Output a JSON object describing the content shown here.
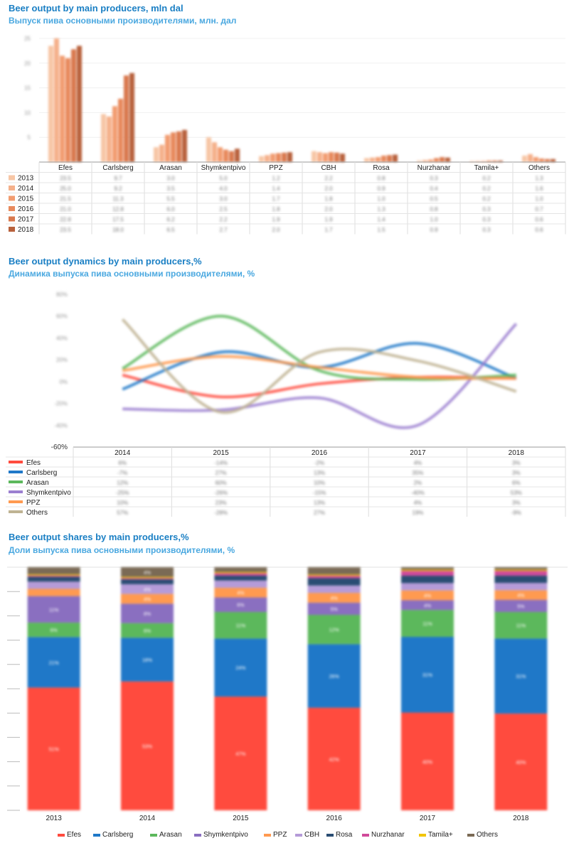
{
  "chart_data": [
    {
      "type": "bar",
      "title": "Beer output by main producers, mln dal",
      "subtitle": "Выпуск пива основными производителями, млн. дал",
      "categories": [
        "Efes",
        "Carlsberg",
        "Arasan",
        "Shymkentpivo",
        "PPZ",
        "CBH",
        "Rosa",
        "Nurzhanar",
        "Tamila+",
        "Others"
      ],
      "y_ticks": [
        "25",
        "20",
        "15",
        "10",
        "5",
        ""
      ],
      "ylim": [
        0,
        25
      ],
      "series": [
        {
          "name": "2013",
          "color": "#f7c6a5",
          "values": [
            23.5,
            9.7,
            3.0,
            5.0,
            1.2,
            2.2,
            0.8,
            0.3,
            0.2,
            1.3
          ]
        },
        {
          "name": "2014",
          "color": "#f5b08a",
          "values": [
            25.0,
            9.2,
            3.5,
            4.0,
            1.4,
            2.0,
            0.9,
            0.4,
            0.2,
            1.6
          ]
        },
        {
          "name": "2015",
          "color": "#f29c70",
          "values": [
            21.5,
            11.3,
            5.5,
            3.0,
            1.7,
            1.8,
            1.0,
            0.5,
            0.2,
            1.0
          ]
        },
        {
          "name": "2016",
          "color": "#e8895c",
          "values": [
            21.0,
            12.8,
            6.0,
            2.5,
            1.8,
            2.0,
            1.3,
            0.8,
            0.3,
            0.7
          ]
        },
        {
          "name": "2017",
          "color": "#d9784d",
          "values": [
            22.8,
            17.5,
            6.2,
            2.2,
            1.9,
            1.9,
            1.4,
            1.0,
            0.3,
            0.6
          ]
        },
        {
          "name": "2018",
          "color": "#b8613c",
          "values": [
            23.5,
            18.0,
            6.5,
            2.7,
            2.0,
            1.7,
            1.5,
            0.9,
            0.3,
            0.6
          ]
        }
      ]
    },
    {
      "type": "line",
      "title": "Beer output dynamics by main producers,%",
      "subtitle": "Динамика выпуска пива основными производителями, %",
      "categories": [
        "2014",
        "2015",
        "2016",
        "2017",
        "2018"
      ],
      "y_ticks": [
        "80%",
        "60%",
        "40%",
        "20%",
        "0%",
        "-20%",
        "-40%",
        "-60%"
      ],
      "ylim": [
        -60,
        80
      ],
      "series": [
        {
          "name": "Efes",
          "color": "#ff4b3e",
          "values": [
            6,
            -14,
            -2,
            4,
            3
          ]
        },
        {
          "name": "Carlsberg",
          "color": "#1f78c8",
          "values": [
            -7,
            27,
            13,
            35,
            3
          ]
        },
        {
          "name": "Arasan",
          "color": "#5cb85c",
          "values": [
            12,
            60,
            10,
            2,
            6
          ]
        },
        {
          "name": "Shymkentpivo",
          "color": "#9b7fd0",
          "values": [
            -25,
            -26,
            -15,
            -40,
            53
          ]
        },
        {
          "name": "PPZ",
          "color": "#ff9a50",
          "values": [
            10,
            23,
            13,
            4,
            3
          ]
        },
        {
          "name": "Others",
          "color": "#bfb393",
          "values": [
            57,
            -28,
            27,
            19,
            -9
          ]
        }
      ]
    },
    {
      "type": "bar",
      "stacked": true,
      "title": "Beer output shares by main producers,%",
      "subtitle": "Доли выпуска пива основными производителями, %",
      "categories": [
        "2013",
        "2014",
        "2015",
        "2016",
        "2017",
        "2018"
      ],
      "ylim": [
        0,
        100
      ],
      "series": [
        {
          "name": "Efes",
          "color": "#ff4b3e",
          "values": [
            51,
            53,
            47,
            42,
            40,
            40
          ]
        },
        {
          "name": "Carlsberg",
          "color": "#1f78c8",
          "values": [
            21,
            18,
            24,
            26,
            31,
            31
          ]
        },
        {
          "name": "Arasan",
          "color": "#5cb85c",
          "values": [
            6,
            6,
            11,
            12,
            11,
            11
          ]
        },
        {
          "name": "Shymkentpivo",
          "color": "#8a6fc0",
          "values": [
            11,
            8,
            6,
            5,
            4,
            5
          ]
        },
        {
          "name": "PPZ",
          "color": "#ff9a50",
          "values": [
            3,
            4,
            4,
            4,
            4,
            4
          ]
        },
        {
          "name": "CBH",
          "color": "#b59bd8",
          "values": [
            3,
            4,
            3,
            3,
            3,
            3
          ]
        },
        {
          "name": "Rosa",
          "color": "#2a4d73",
          "values": [
            2,
            2,
            2,
            3,
            3,
            3
          ]
        },
        {
          "name": "Nurzhanar",
          "color": "#d04a9a",
          "values": [
            0.5,
            0.5,
            1,
            1,
            2,
            2
          ]
        },
        {
          "name": "Tamila+",
          "color": "#f2c500",
          "values": [
            0.5,
            0.5,
            0.5,
            0.5,
            0.5,
            0.5
          ]
        },
        {
          "name": "Others",
          "color": "#7a6a55",
          "values": [
            3,
            4,
            2,
            3,
            1,
            1
          ]
        }
      ]
    }
  ]
}
